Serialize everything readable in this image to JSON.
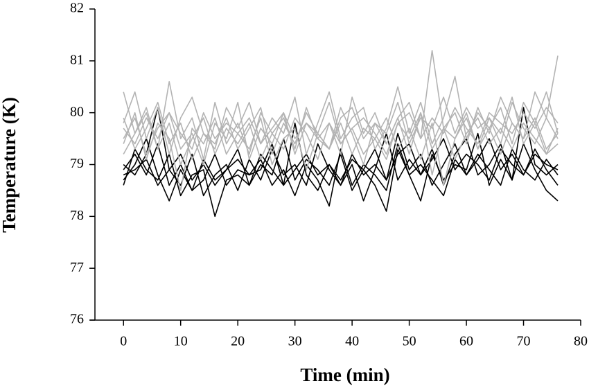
{
  "chart_data": {
    "type": "line",
    "xlabel": "Time (min)",
    "ylabel": "Temperature (K)",
    "x": [
      0,
      2,
      4,
      6,
      8,
      10,
      12,
      14,
      16,
      18,
      20,
      22,
      24,
      26,
      28,
      30,
      32,
      34,
      36,
      38,
      40,
      42,
      44,
      46,
      48,
      50,
      52,
      54,
      56,
      58,
      60,
      62,
      64,
      66,
      68,
      70,
      72,
      74,
      76
    ],
    "xlim": [
      -5,
      80
    ],
    "xticks": [
      0,
      10,
      20,
      30,
      40,
      50,
      60,
      70,
      80
    ],
    "ylim": [
      76,
      82
    ],
    "yticks": [
      76,
      77,
      78,
      79,
      80,
      81,
      82
    ],
    "series": [
      {
        "color": "#000000",
        "values": [
          78.9,
          79.2,
          78.8,
          79.4,
          78.6,
          79.0,
          78.5,
          79.1,
          78.7,
          78.9,
          79.3,
          78.6,
          79.0,
          78.8,
          79.5,
          78.7,
          79.1,
          78.9,
          78.6,
          79.2,
          78.5,
          78.9,
          79.3,
          78.7,
          79.6,
          78.9,
          79.2,
          78.6,
          79.0,
          79.4,
          78.8,
          79.1,
          79.5,
          78.9,
          79.2,
          78.8,
          79.3,
          78.9,
          78.6
        ]
      },
      {
        "color": "#000000",
        "values": [
          78.7,
          79.0,
          79.5,
          78.8,
          78.3,
          78.9,
          78.5,
          78.7,
          79.2,
          78.6,
          78.9,
          78.8,
          79.1,
          78.6,
          78.9,
          78.4,
          79.0,
          78.7,
          78.2,
          79.3,
          78.6,
          79.0,
          78.8,
          78.5,
          79.4,
          78.8,
          78.3,
          79.2,
          78.7,
          79.0,
          78.9,
          79.6,
          78.6,
          79.1,
          78.7,
          79.4,
          78.9,
          78.5,
          78.3
        ]
      },
      {
        "color": "#000000",
        "values": [
          79.0,
          78.8,
          79.2,
          80.1,
          78.9,
          78.6,
          79.2,
          78.4,
          78.8,
          79.0,
          78.5,
          79.1,
          78.7,
          79.3,
          78.8,
          79.0,
          78.6,
          79.4,
          78.9,
          78.6,
          79.0,
          78.3,
          78.9,
          79.6,
          78.7,
          79.1,
          78.8,
          79.3,
          78.6,
          79.2,
          79.5,
          78.8,
          79.0,
          79.4,
          78.7,
          80.1,
          79.0,
          78.8,
          79.0
        ]
      },
      {
        "color": "#000000",
        "values": [
          78.6,
          79.3,
          78.9,
          78.7,
          79.2,
          78.4,
          78.8,
          78.9,
          78.0,
          78.7,
          78.8,
          78.6,
          79.2,
          78.9,
          78.6,
          79.8,
          78.8,
          78.5,
          79.0,
          78.7,
          79.1,
          78.9,
          78.6,
          78.1,
          79.3,
          78.8,
          79.0,
          78.7,
          78.4,
          79.1,
          78.8,
          79.2,
          78.9,
          78.6,
          79.3,
          78.9,
          78.7,
          79.1,
          78.8
        ]
      },
      {
        "color": "#000000",
        "values": [
          78.8,
          78.9,
          79.1,
          78.6,
          78.9,
          79.2,
          78.7,
          79.0,
          78.6,
          78.9,
          79.1,
          78.8,
          78.9,
          79.4,
          78.6,
          78.9,
          79.2,
          78.8,
          79.0,
          78.6,
          79.2,
          78.8,
          79.0,
          78.7,
          79.2,
          79.4,
          78.8,
          79.1,
          79.5,
          78.9,
          79.2,
          79.0,
          78.7,
          79.3,
          79.0,
          78.8,
          79.2,
          79.0,
          78.9
        ]
      },
      {
        "color": "#b3b3b3",
        "values": [
          80.4,
          79.6,
          80.0,
          79.3,
          80.6,
          79.5,
          79.9,
          79.1,
          80.2,
          79.4,
          79.8,
          79.2,
          80.0,
          79.6,
          79.9,
          79.3,
          80.1,
          79.5,
          79.8,
          79.2,
          80.3,
          79.6,
          80.0,
          79.4,
          79.9,
          80.2,
          79.5,
          81.2,
          79.7,
          80.0,
          79.4,
          80.1,
          79.6,
          80.3,
          79.8,
          79.5,
          80.4,
          79.9,
          81.1
        ]
      },
      {
        "color": "#b3b3b3",
        "values": [
          79.8,
          80.4,
          79.5,
          80.1,
          79.2,
          79.9,
          80.3,
          79.6,
          79.3,
          80.1,
          79.7,
          80.2,
          79.4,
          79.9,
          79.6,
          80.3,
          79.2,
          79.8,
          80.4,
          79.5,
          79.9,
          80.1,
          79.3,
          79.7,
          80.5,
          79.6,
          80.2,
          79.4,
          79.9,
          80.7,
          79.5,
          80.0,
          79.7,
          80.1,
          79.4,
          80.2,
          79.8,
          80.4,
          79.6
        ]
      },
      {
        "color": "#b3b3b3",
        "values": [
          79.5,
          79.9,
          79.2,
          79.7,
          80.0,
          79.3,
          79.6,
          79.0,
          79.8,
          79.5,
          80.2,
          79.1,
          79.7,
          79.4,
          80.0,
          79.2,
          79.8,
          79.5,
          79.3,
          80.1,
          79.6,
          79.0,
          79.8,
          79.4,
          79.9,
          79.2,
          80.0,
          78.8,
          79.7,
          79.5,
          80.0,
          79.3,
          79.9,
          79.6,
          80.3,
          79.4,
          79.8,
          79.2,
          79.7
        ]
      },
      {
        "color": "#b3b3b3",
        "values": [
          79.2,
          79.6,
          80.1,
          79.3,
          79.8,
          79.0,
          79.5,
          79.9,
          79.2,
          79.7,
          79.4,
          79.8,
          79.1,
          79.6,
          79.3,
          79.9,
          79.6,
          79.1,
          79.8,
          79.4,
          79.7,
          79.2,
          79.5,
          79.9,
          79.3,
          79.7,
          79.1,
          79.8,
          78.6,
          79.5,
          79.9,
          79.3,
          79.7,
          79.2,
          79.8,
          79.5,
          79.9,
          79.3,
          79.6
        ]
      },
      {
        "color": "#b3b3b3",
        "values": [
          79.9,
          79.3,
          79.7,
          80.2,
          79.4,
          79.8,
          79.1,
          79.6,
          79.4,
          79.9,
          79.3,
          79.7,
          80.1,
          79.2,
          79.8,
          79.4,
          80.0,
          79.6,
          79.3,
          79.9,
          80.1,
          79.5,
          79.8,
          79.6,
          80.2,
          79.4,
          79.9,
          79.7,
          80.3,
          79.6,
          80.1,
          79.7,
          79.9,
          79.4,
          80.2,
          79.7,
          79.4,
          79.9,
          79.5
        ]
      },
      {
        "color": "#b3b3b3",
        "values": [
          79.4,
          80.0,
          79.1,
          79.8,
          79.5,
          78.5,
          79.7,
          79.4,
          79.9,
          79.2,
          79.6,
          79.3,
          79.9,
          79.0,
          79.5,
          79.7,
          78.9,
          79.6,
          79.3,
          79.8,
          79.2,
          79.7,
          79.5,
          79.1,
          79.8,
          79.5,
          80.0,
          79.3,
          79.7,
          79.1,
          79.6,
          79.9,
          79.4,
          79.7,
          79.3,
          79.8,
          79.5,
          79.2,
          79.4
        ]
      },
      {
        "color": "#b3b3b3",
        "values": [
          79.7,
          79.4,
          79.9,
          79.5,
          80.0,
          79.6,
          79.3,
          80.0,
          79.5,
          79.8,
          79.6,
          79.9,
          79.4,
          79.7,
          80.0,
          79.5,
          79.8,
          79.6,
          80.2,
          79.4,
          79.7,
          79.9,
          79.6,
          79.2,
          79.8,
          80.0,
          79.5,
          79.9,
          79.6,
          80.1,
          79.7,
          79.4,
          80.0,
          79.8,
          79.6,
          80.0,
          79.7,
          80.1,
          79.8
        ]
      }
    ]
  }
}
